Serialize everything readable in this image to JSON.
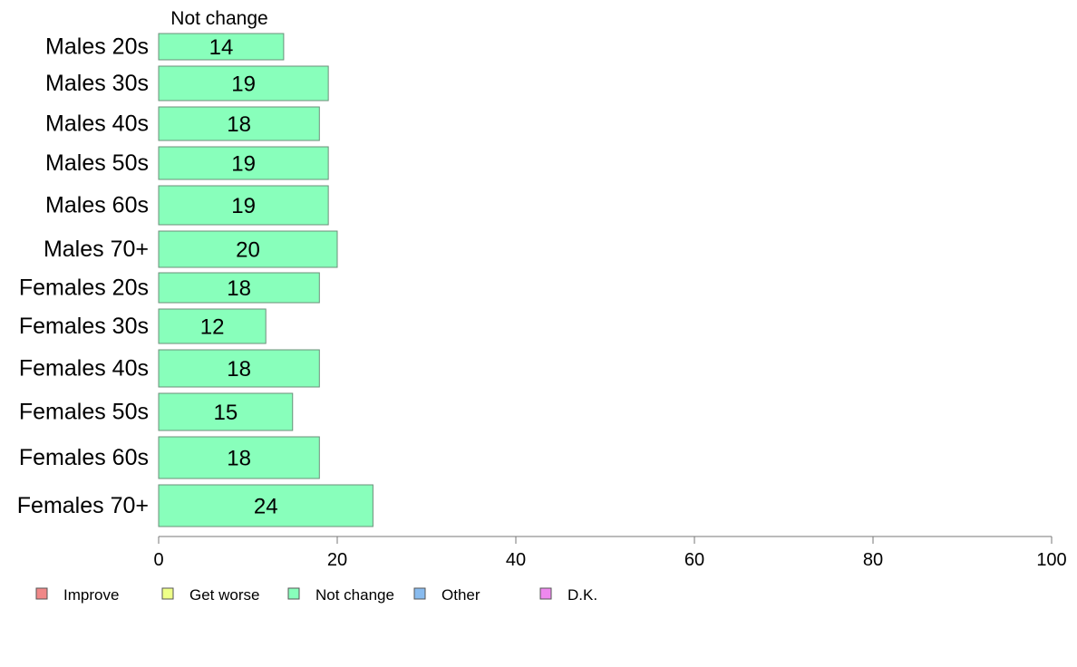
{
  "chart_data": {
    "type": "bar",
    "orientation": "horizontal",
    "stacked": true,
    "categories": [
      "Males 20s",
      "Males 30s",
      "Males 40s",
      "Males 50s",
      "Males 60s",
      "Males 70+",
      "Females 20s",
      "Females 30s",
      "Females 40s",
      "Females 50s",
      "Females 60s",
      "Females 70+"
    ],
    "series": [
      {
        "name": "Not change",
        "color": "#88ffbb",
        "values": [
          14,
          19,
          18,
          19,
          19,
          20,
          18,
          12,
          18,
          15,
          18,
          24
        ]
      }
    ],
    "series_label": "Not change",
    "xlim": [
      0,
      100
    ],
    "xticks": [
      0,
      20,
      40,
      60,
      80,
      100
    ],
    "grid": false,
    "legend": {
      "position": "bottom-left",
      "items": [
        {
          "label": "Improve",
          "color": "#f08888"
        },
        {
          "label": "Get worse",
          "color": "#eeff88"
        },
        {
          "label": "Not change",
          "color": "#88ffbb"
        },
        {
          "label": "Other",
          "color": "#88bbee"
        },
        {
          "label": "D.K.",
          "color": "#ee88ee"
        }
      ]
    }
  }
}
